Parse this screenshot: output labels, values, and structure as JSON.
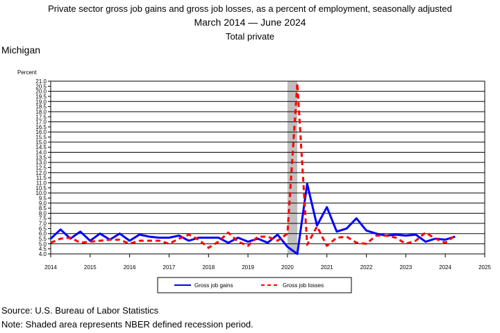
{
  "title": "Private sector gross job gains and gross job losses, as a percent of employment, seasonally adjusted",
  "date_range": {
    "start": "March 2014",
    "end": "June 2024"
  },
  "subtitle": "Total private",
  "region": "Michigan",
  "source": "Source: U.S. Bureau of Labor Statistics",
  "note": "Note: Shaded area represents NBER defined recession period.",
  "colors": {
    "gains": "#0000ff",
    "losses": "#ff0000",
    "recession": "#c0c0c0"
  },
  "chart_data": {
    "type": "line",
    "ylabel": "Percent",
    "ylim": [
      4.0,
      21.0
    ],
    "ytick_step": 0.5,
    "xlim": [
      2014,
      2025
    ],
    "xticks": [
      "2014",
      "2015",
      "2016",
      "2017",
      "2018",
      "2019",
      "2020",
      "2021",
      "2022",
      "2023",
      "2024",
      "2025"
    ],
    "grid": "horizontal",
    "legend_position": "bottom",
    "recession": {
      "start": 2020.0,
      "end": 2020.25
    },
    "x": [
      2014.0,
      2014.25,
      2014.5,
      2014.75,
      2015.0,
      2015.25,
      2015.5,
      2015.75,
      2016.0,
      2016.25,
      2016.5,
      2016.75,
      2017.0,
      2017.25,
      2017.5,
      2017.75,
      2018.0,
      2018.25,
      2018.5,
      2018.75,
      2019.0,
      2019.25,
      2019.5,
      2019.75,
      2020.0,
      2020.25,
      2020.5,
      2020.75,
      2021.0,
      2021.25,
      2021.5,
      2021.75,
      2022.0,
      2022.25,
      2022.5,
      2022.75,
      2023.0,
      2023.25,
      2023.5,
      2023.75,
      2024.0,
      2024.25
    ],
    "series": [
      {
        "name": "Gross job gains",
        "style": "solid",
        "values": [
          5.5,
          6.4,
          5.5,
          6.2,
          5.3,
          6.0,
          5.4,
          6.0,
          5.3,
          5.9,
          5.7,
          5.6,
          5.6,
          5.8,
          5.3,
          5.6,
          5.6,
          5.6,
          5.1,
          5.6,
          5.2,
          5.5,
          5.1,
          5.9,
          4.7,
          4.0,
          10.9,
          6.8,
          8.6,
          6.2,
          6.5,
          7.5,
          6.3,
          6.0,
          5.8,
          5.9,
          5.8,
          5.9,
          5.2,
          5.5,
          5.4,
          5.7
        ]
      },
      {
        "name": "Gross job losses",
        "style": "dashed",
        "values": [
          5.1,
          5.5,
          5.6,
          5.1,
          5.2,
          5.3,
          5.4,
          5.4,
          5.0,
          5.3,
          5.3,
          5.3,
          5.0,
          5.5,
          5.9,
          5.4,
          4.6,
          5.2,
          6.1,
          5.2,
          4.8,
          5.7,
          5.7,
          5.3,
          6.0,
          20.8,
          4.9,
          6.7,
          4.8,
          5.6,
          5.7,
          5.1,
          5.0,
          5.8,
          5.8,
          5.6,
          5.0,
          5.3,
          6.1,
          5.5,
          5.1,
          5.8
        ]
      }
    ]
  }
}
